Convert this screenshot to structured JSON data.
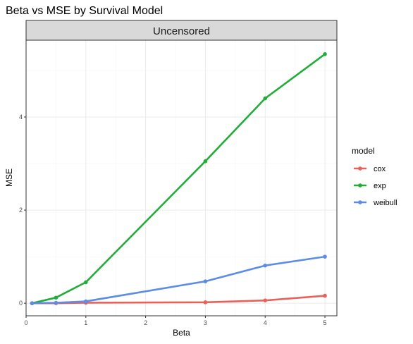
{
  "chart_data": {
    "type": "line",
    "title": "Beta vs MSE by Survival Model",
    "facet_label": "Uncensored",
    "xlabel": "Beta",
    "ylabel": "MSE",
    "x": [
      0.1,
      0.5,
      1,
      3,
      4,
      5
    ],
    "xlim": [
      -0.0,
      5.2
    ],
    "ylim": [
      -0.27,
      5.65
    ],
    "x_ticks": [
      0,
      1,
      2,
      3,
      4,
      5
    ],
    "y_ticks": [
      0,
      2,
      4
    ],
    "grid": true,
    "legend": {
      "title": "model",
      "placement": "right"
    },
    "series": [
      {
        "name": "cox",
        "color": "#e8625a",
        "values": [
          0.0,
          0.0,
          0.01,
          0.02,
          0.06,
          0.16
        ]
      },
      {
        "name": "exp",
        "color": "#22ad3b",
        "values": [
          0.0,
          0.12,
          0.45,
          3.05,
          4.4,
          5.35
        ]
      },
      {
        "name": "weibull",
        "color": "#5d8be8",
        "values": [
          0.0,
          0.01,
          0.04,
          0.47,
          0.81,
          1.0
        ]
      }
    ]
  }
}
